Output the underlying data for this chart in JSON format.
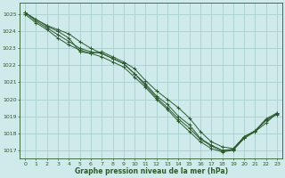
{
  "title": "Graphe pression niveau de la mer (hPa)",
  "bg_color": "#ceeaea",
  "grid_color": "#aacfcf",
  "line_color": "#2d5a2d",
  "xlim": [
    -0.5,
    23.5
  ],
  "ylim": [
    1016.5,
    1025.7
  ],
  "yticks": [
    1017,
    1018,
    1019,
    1020,
    1021,
    1022,
    1023,
    1024,
    1025
  ],
  "xticks": [
    0,
    1,
    2,
    3,
    4,
    5,
    6,
    7,
    8,
    9,
    10,
    11,
    12,
    13,
    14,
    15,
    16,
    17,
    18,
    19,
    20,
    21,
    22,
    23
  ],
  "series": [
    [
      1025.1,
      1024.7,
      1024.3,
      1024.0,
      1023.6,
      1022.8,
      1022.7,
      1022.8,
      1022.5,
      1022.2,
      1021.8,
      1021.1,
      1020.5,
      1020.0,
      1019.5,
      1018.9,
      1018.1,
      1017.5,
      1017.2,
      1017.1,
      1017.8,
      1018.1,
      1018.6,
      1019.2
    ],
    [
      1025.0,
      1024.5,
      1024.1,
      1023.6,
      1023.2,
      1022.9,
      1022.7,
      1022.5,
      1022.2,
      1021.9,
      1021.3,
      1020.7,
      1020.0,
      1019.4,
      1018.7,
      1018.1,
      1017.5,
      1017.1,
      1016.9,
      1017.0,
      1017.7,
      1018.1,
      1018.8,
      1019.1
    ],
    [
      1025.1,
      1024.6,
      1024.2,
      1023.8,
      1023.4,
      1023.0,
      1022.8,
      1022.7,
      1022.4,
      1022.1,
      1021.5,
      1020.9,
      1020.2,
      1019.7,
      1019.0,
      1018.5,
      1017.7,
      1017.3,
      1017.0,
      1017.05,
      1017.75,
      1018.15,
      1018.75,
      1019.15
    ],
    [
      1025.1,
      1024.7,
      1024.35,
      1024.1,
      1023.85,
      1023.4,
      1023.0,
      1022.7,
      1022.4,
      1022.1,
      1021.5,
      1020.8,
      1020.1,
      1019.5,
      1018.85,
      1018.3,
      1017.65,
      1017.25,
      1016.95,
      1017.05,
      1017.8,
      1018.15,
      1018.85,
      1019.2
    ]
  ]
}
